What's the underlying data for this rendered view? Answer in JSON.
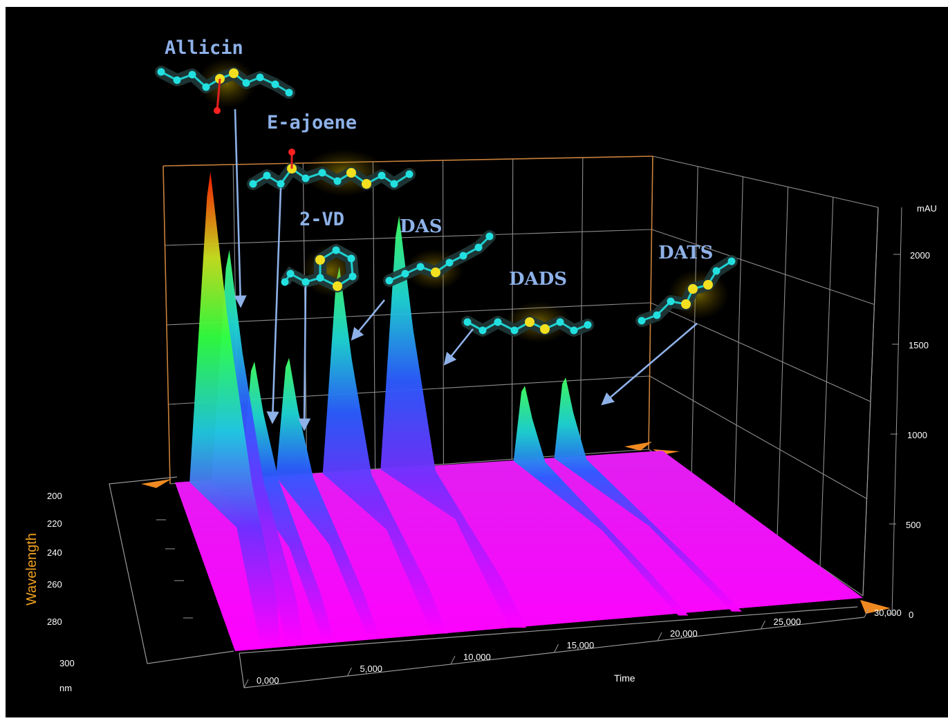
{
  "chart_data": {
    "type": "surface3d",
    "x_axis": {
      "label": "Time",
      "ticks": [
        "0,000",
        "5,000",
        "10,000",
        "15,000",
        "20,000",
        "25,000",
        "30,000"
      ],
      "range": [
        0,
        30
      ]
    },
    "y_axis": {
      "label": "mAU",
      "ticks": [
        "0",
        "500",
        "1000",
        "1500",
        "2000"
      ],
      "range": [
        0,
        2200
      ]
    },
    "z_axis": {
      "label": "Wavelength",
      "unit": "nm",
      "ticks": [
        "200",
        "220",
        "240",
        "260",
        "280",
        "300"
      ],
      "range": [
        200,
        300
      ]
    },
    "peaks": [
      {
        "name": "",
        "time": 1.6,
        "height": 2180
      },
      {
        "name": "Allicin",
        "time": 2.8,
        "height": 1620
      },
      {
        "name": "E-ajoene",
        "time": 4.4,
        "height": 820
      },
      {
        "name": "2-VD",
        "time": 6.6,
        "height": 830
      },
      {
        "name": "DAS",
        "time": 9.8,
        "height": 1450
      },
      {
        "name": "DADS",
        "time": 13.6,
        "height": 1780
      },
      {
        "name": "",
        "time": 21.6,
        "height": 520
      },
      {
        "name": "DATS",
        "time": 24.2,
        "height": 560
      }
    ],
    "grid": true,
    "colors": {
      "surface_base": "#ff00ff",
      "mid": "#6a3cff",
      "high": "#1ec8e0",
      "peak": "#ff2000",
      "grid": "#9a9a9a",
      "axis_box": "#d08a40",
      "arrow": "#8eb1e8"
    }
  },
  "labels": {
    "allicin": "Allicin",
    "ajoene": "E-ajoene",
    "vd": "2-VD",
    "das": "DAS",
    "dads": "DADS",
    "dats": "DATS"
  }
}
